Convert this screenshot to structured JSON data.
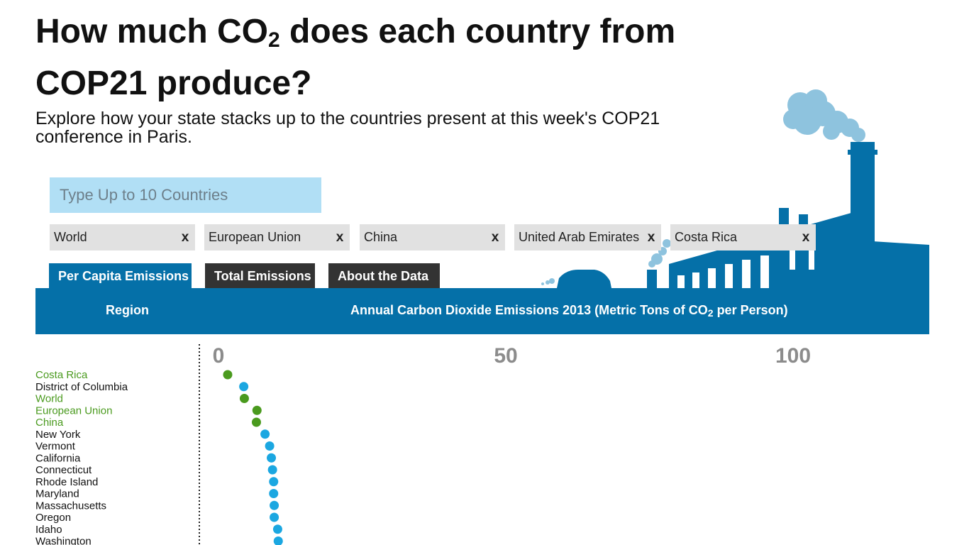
{
  "header": {
    "title_part1": "How much CO",
    "title_sub": "2",
    "title_part2": " does each country from COP21 produce?",
    "subtitle": "Explore how your state stacks up to the countries present at this week's COP21 conference in Paris."
  },
  "search": {
    "placeholder": "Type Up to 10 Countries",
    "value": ""
  },
  "chips": [
    {
      "label": "World",
      "remove": "x"
    },
    {
      "label": "European Union",
      "remove": "x"
    },
    {
      "label": "China",
      "remove": "x"
    },
    {
      "label": "United Arab Emirates",
      "remove": "x"
    },
    {
      "label": "Costa Rica",
      "remove": "x"
    }
  ],
  "tabs": [
    {
      "label": "Per Capita Emissions",
      "active": true
    },
    {
      "label": "Total Emissions",
      "active": false
    },
    {
      "label": "About the Data",
      "active": false
    }
  ],
  "table_header": {
    "region": "Region",
    "metric_part1": "Annual Carbon Dioxide Emissions 2013 (Metric Tons of CO",
    "metric_sub": "2",
    "metric_part2": " per Person)"
  },
  "colors": {
    "accent_blue": "#0570a8",
    "search_bg": "#b1dff5",
    "chip_bg": "#e1e1e1",
    "tab_inactive": "#333333",
    "country_green": "#4a9a1e",
    "state_blue": "#1ba7e1",
    "axis_tick_gray": "#8c8c8c",
    "smoke": "#8ec3de"
  },
  "chart_data": {
    "type": "scatter",
    "title": "Annual Carbon Dioxide Emissions 2013 (Metric Tons of CO2 per Person)",
    "xlim": [
      0,
      120
    ],
    "xticks": [
      0,
      50,
      100
    ],
    "rows": [
      {
        "label": "Costa Rica",
        "value": 1.6,
        "kind": "country"
      },
      {
        "label": "District of Columbia",
        "value": 4.4,
        "kind": "state"
      },
      {
        "label": "World",
        "value": 4.5,
        "kind": "country"
      },
      {
        "label": "European Union",
        "value": 6.7,
        "kind": "country"
      },
      {
        "label": "China",
        "value": 6.6,
        "kind": "country"
      },
      {
        "label": "New York",
        "value": 8.1,
        "kind": "state"
      },
      {
        "label": "Vermont",
        "value": 8.9,
        "kind": "state"
      },
      {
        "label": "California",
        "value": 9.2,
        "kind": "state"
      },
      {
        "label": "Connecticut",
        "value": 9.4,
        "kind": "state"
      },
      {
        "label": "Rhode Island",
        "value": 9.6,
        "kind": "state"
      },
      {
        "label": "Maryland",
        "value": 9.6,
        "kind": "state"
      },
      {
        "label": "Massachusetts",
        "value": 9.7,
        "kind": "state"
      },
      {
        "label": "Oregon",
        "value": 9.7,
        "kind": "state"
      },
      {
        "label": "Idaho",
        "value": 10.3,
        "kind": "state"
      },
      {
        "label": "Washington",
        "value": 10.4,
        "kind": "state"
      }
    ]
  }
}
